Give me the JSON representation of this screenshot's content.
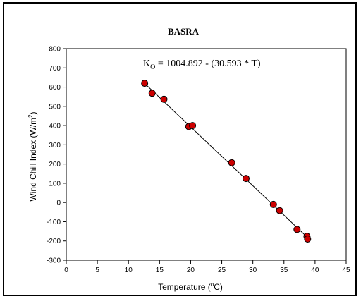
{
  "chart_data": {
    "type": "scatter",
    "title": "BASRA",
    "equation": {
      "lhs_main": "K",
      "lhs_sub": "O",
      "rhs": " = 1004.892 - (30.593 * T)"
    },
    "xlabel": {
      "prefix": "Temperature (",
      "sup": "o",
      "suffix": "C)"
    },
    "ylabel": {
      "prefix": "Wind Chill Index (W/m",
      "sup": "2",
      "suffix": ")"
    },
    "xlim": [
      0,
      45
    ],
    "ylim": [
      -300,
      800
    ],
    "xticks": [
      0,
      5,
      10,
      15,
      20,
      25,
      30,
      35,
      40,
      45
    ],
    "yticks": [
      -300,
      -200,
      -100,
      0,
      100,
      200,
      300,
      400,
      500,
      600,
      700,
      800
    ],
    "grid": false,
    "regression": {
      "intercept": 1004.892,
      "slope": -30.593
    },
    "marker_color": "#cc0000",
    "series": [
      {
        "points": [
          {
            "x": 12.6,
            "y": 620
          },
          {
            "x": 13.8,
            "y": 568
          },
          {
            "x": 15.7,
            "y": 537
          },
          {
            "x": 19.7,
            "y": 395
          },
          {
            "x": 20.3,
            "y": 400
          },
          {
            "x": 26.6,
            "y": 207
          },
          {
            "x": 28.9,
            "y": 125
          },
          {
            "x": 33.3,
            "y": -10
          },
          {
            "x": 34.3,
            "y": -42
          },
          {
            "x": 37.1,
            "y": -140
          },
          {
            "x": 38.7,
            "y": -176
          },
          {
            "x": 38.8,
            "y": -190
          }
        ]
      }
    ]
  }
}
